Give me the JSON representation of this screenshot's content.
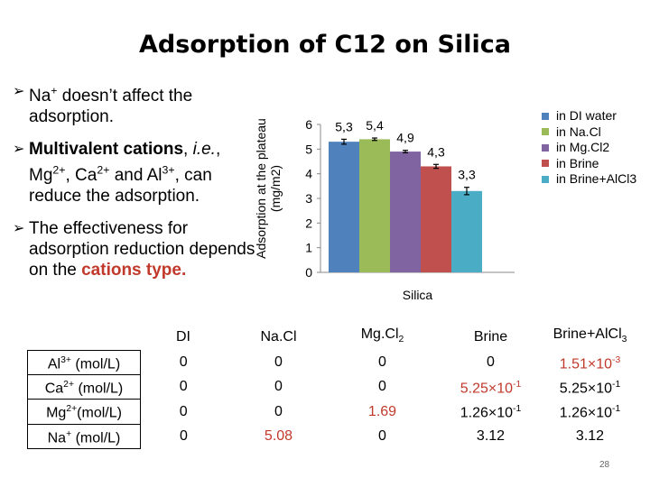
{
  "title": "Adsorption of C12 on Silica",
  "bullets": [
    {
      "parts": [
        {
          "t": "Na"
        },
        {
          "t": "+",
          "sup": true
        },
        {
          "t": " doesn’t affect the adsorption."
        }
      ]
    },
    {
      "parts": [
        {
          "t": "Multivalent cations",
          "bold": true
        },
        {
          "t": ", "
        },
        {
          "t": "i.e.",
          "italic": true
        },
        {
          "t": ", Mg"
        },
        {
          "t": "2+",
          "sup": true
        },
        {
          "t": ", Ca"
        },
        {
          "t": "2+",
          "sup": true
        },
        {
          "t": " and Al"
        },
        {
          "t": "3+",
          "sup": true
        },
        {
          "t": ", can reduce the adsorption."
        }
      ]
    },
    {
      "parts": [
        {
          "t": "The effectiveness for adsorption reduction depends on the "
        },
        {
          "t": "cations type.",
          "red": true
        }
      ]
    }
  ],
  "chart_data": {
    "type": "bar",
    "categories": [
      "Silica"
    ],
    "xlabel": "Silica",
    "ylabel": "Adsorption at the plateau (mg/m2)",
    "ylim": [
      0,
      6
    ],
    "yticks": [
      0,
      1,
      2,
      3,
      4,
      5,
      6
    ],
    "grid": false,
    "legend_position": "right",
    "series": [
      {
        "name": "in DI water",
        "value": 5.3,
        "label": "5,3",
        "error": 0.1,
        "color": "#4F81BD"
      },
      {
        "name": "in Na.Cl",
        "value": 5.4,
        "label": "5,4",
        "error": 0.05,
        "color": "#9BBB59"
      },
      {
        "name": "in Mg.Cl2",
        "value": 4.9,
        "label": "4,9",
        "error": 0.05,
        "color": "#8064A2"
      },
      {
        "name": "in Brine",
        "value": 4.3,
        "label": "4,3",
        "error": 0.08,
        "color": "#C0504D"
      },
      {
        "name": "in Brine+AlCl3",
        "value": 3.3,
        "label": "3,3",
        "error": 0.15,
        "color": "#4BACC6"
      }
    ]
  },
  "table": {
    "columns": [
      [
        {
          "t": ""
        }
      ],
      [
        {
          "t": "DI"
        }
      ],
      [
        {
          "t": "Na.Cl"
        }
      ],
      [
        {
          "t": "Mg.Cl"
        },
        {
          "t": "2",
          "sub": true
        }
      ],
      [
        {
          "t": "Brine"
        }
      ],
      [
        {
          "t": "Brine+AlCl"
        },
        {
          "t": "3",
          "sub": true
        }
      ]
    ],
    "rows": [
      [
        [
          {
            "t": "Al"
          },
          {
            "t": "3+",
            "sup": true
          },
          {
            "t": " (mol/L)"
          }
        ],
        [
          {
            "t": "0"
          }
        ],
        [
          {
            "t": "0"
          }
        ],
        [
          {
            "t": "0"
          }
        ],
        [
          {
            "t": "0"
          }
        ],
        [
          {
            "t": "1.51×10",
            "red": true
          },
          {
            "t": "-3",
            "sup": true,
            "red": true
          }
        ]
      ],
      [
        [
          {
            "t": "Ca"
          },
          {
            "t": "2+",
            "sup": true
          },
          {
            "t": " (mol/L)"
          }
        ],
        [
          {
            "t": "0"
          }
        ],
        [
          {
            "t": "0"
          }
        ],
        [
          {
            "t": "0"
          }
        ],
        [
          {
            "t": "5.25×10",
            "red": true
          },
          {
            "t": "-1",
            "sup": true,
            "red": true
          }
        ],
        [
          {
            "t": "5.25×10"
          },
          {
            "t": "-1",
            "sup": true
          }
        ]
      ],
      [
        [
          {
            "t": "Mg"
          },
          {
            "t": "2+",
            "sup": true
          },
          {
            "t": "(mol/L)"
          }
        ],
        [
          {
            "t": "0"
          }
        ],
        [
          {
            "t": "0"
          }
        ],
        [
          {
            "t": "1.69",
            "red": true
          }
        ],
        [
          {
            "t": "1.26×10"
          },
          {
            "t": "-1",
            "sup": true
          }
        ],
        [
          {
            "t": "1.26×10"
          },
          {
            "t": "-1",
            "sup": true
          }
        ]
      ],
      [
        [
          {
            "t": "Na"
          },
          {
            "t": "+",
            "sup": true
          },
          {
            "t": " (mol/L)"
          }
        ],
        [
          {
            "t": "0"
          }
        ],
        [
          {
            "t": "5.08",
            "red": true
          }
        ],
        [
          {
            "t": "0"
          }
        ],
        [
          {
            "t": "3.12"
          }
        ],
        [
          {
            "t": "3.12"
          }
        ]
      ]
    ]
  },
  "page_number": "28"
}
